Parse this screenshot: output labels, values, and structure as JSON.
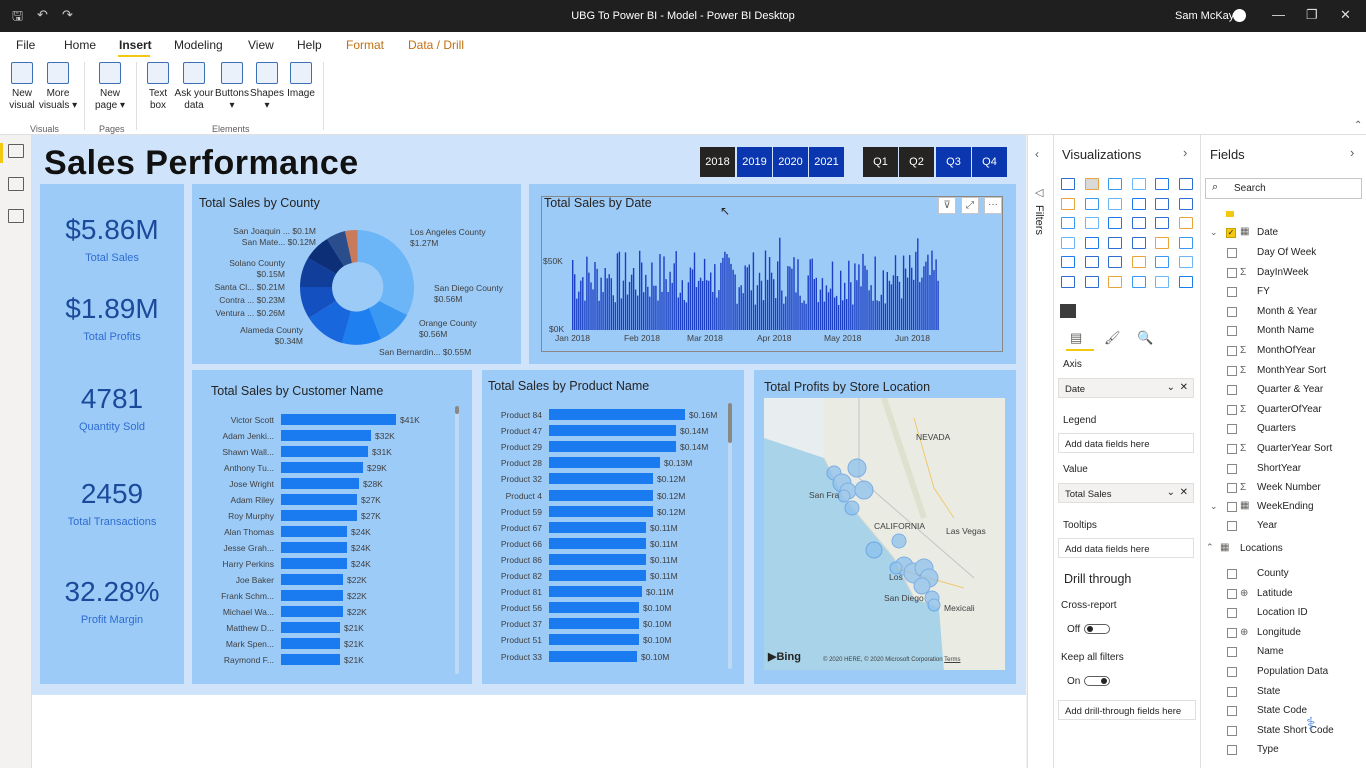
{
  "titlebar": {
    "title": "UBG To Power BI - Model - Power BI Desktop",
    "user": "Sam McKay"
  },
  "menu": [
    "File",
    "Home",
    "Insert",
    "Modeling",
    "View",
    "Help",
    "Format",
    "Data / Drill"
  ],
  "ribbon": {
    "buttons": [
      {
        "label": "New\nvisual"
      },
      {
        "label": "More\nvisuals ▾"
      },
      {
        "label": "New\npage ▾"
      },
      {
        "label": "Text\nbox"
      },
      {
        "label": "Ask your\ndata"
      },
      {
        "label": "Buttons\n▾"
      },
      {
        "label": "Shapes\n▾"
      },
      {
        "label": "Image"
      }
    ],
    "groups": [
      "Visuals",
      "Pages",
      "Elements"
    ]
  },
  "report": {
    "title": "Sales Performance",
    "years": [
      "2018",
      "2019",
      "2020",
      "2021"
    ],
    "quarters": [
      "Q1",
      "Q2",
      "Q3",
      "Q4"
    ],
    "kpis": [
      {
        "value": "$5.86M",
        "label": "Total Sales"
      },
      {
        "value": "$1.89M",
        "label": "Total Profits"
      },
      {
        "value": "4781",
        "label": "Quantity Sold"
      },
      {
        "value": "2459",
        "label": "Total Transactions"
      },
      {
        "value": "32.28%",
        "label": "Profit Margin"
      }
    ],
    "county_chart": {
      "title": "Total Sales by County",
      "labels": [
        {
          "name": "San Joaquin ...",
          "value": "$0.1M"
        },
        {
          "name": "San Mate...",
          "value": "$0.12M"
        },
        {
          "name": "Solano County",
          "value": "$0.15M"
        },
        {
          "name": "Santa Cl...",
          "value": "$0.21M"
        },
        {
          "name": "Contra ...",
          "value": "$0.23M"
        },
        {
          "name": "Ventura ...",
          "value": "$0.26M"
        },
        {
          "name": "Alameda County",
          "value": "$0.34M"
        },
        {
          "name": "Los Angeles County",
          "value": "$1.27M"
        },
        {
          "name": "San Diego County",
          "value": "$0.56M"
        },
        {
          "name": "Orange County",
          "value": "$0.56M"
        },
        {
          "name": "San Bernardin...",
          "value": "$0.55M"
        }
      ]
    },
    "date_chart": {
      "title": "Total Sales by Date",
      "yticks": [
        "$50K",
        "$0K"
      ],
      "xticks": [
        "Jan 2018",
        "Feb 2018",
        "Mar 2018",
        "Apr 2018",
        "May 2018",
        "Jun 2018"
      ]
    },
    "customer_chart": {
      "title": "Total Sales by Customer Name",
      "rows": [
        {
          "name": "Victor Scott",
          "value": "$41K"
        },
        {
          "name": "Adam Jenki...",
          "value": "$32K"
        },
        {
          "name": "Shawn Wall...",
          "value": "$31K"
        },
        {
          "name": "Anthony Tu...",
          "value": "$29K"
        },
        {
          "name": "Jose Wright",
          "value": "$28K"
        },
        {
          "name": "Adam Riley",
          "value": "$27K"
        },
        {
          "name": "Roy Murphy",
          "value": "$27K"
        },
        {
          "name": "Alan Thomas",
          "value": "$24K"
        },
        {
          "name": "Jesse Grah...",
          "value": "$24K"
        },
        {
          "name": "Harry Perkins",
          "value": "$24K"
        },
        {
          "name": "Joe Baker",
          "value": "$22K"
        },
        {
          "name": "Frank Schm...",
          "value": "$22K"
        },
        {
          "name": "Michael Wa...",
          "value": "$22K"
        },
        {
          "name": "Matthew D...",
          "value": "$21K"
        },
        {
          "name": "Mark Spen...",
          "value": "$21K"
        },
        {
          "name": "Raymond F...",
          "value": "$21K"
        }
      ]
    },
    "product_chart": {
      "title": "Total Sales by Product Name",
      "rows": [
        {
          "name": "Product 84",
          "value": "$0.16M"
        },
        {
          "name": "Product 47",
          "value": "$0.14M"
        },
        {
          "name": "Product 29",
          "value": "$0.14M"
        },
        {
          "name": "Product 28",
          "value": "$0.13M"
        },
        {
          "name": "Product 32",
          "value": "$0.12M"
        },
        {
          "name": "Product 4",
          "value": "$0.12M"
        },
        {
          "name": "Product 59",
          "value": "$0.12M"
        },
        {
          "name": "Product 67",
          "value": "$0.11M"
        },
        {
          "name": "Product 66",
          "value": "$0.11M"
        },
        {
          "name": "Product 86",
          "value": "$0.11M"
        },
        {
          "name": "Product 82",
          "value": "$0.11M"
        },
        {
          "name": "Product 81",
          "value": "$0.11M"
        },
        {
          "name": "Product 56",
          "value": "$0.10M"
        },
        {
          "name": "Product 37",
          "value": "$0.10M"
        },
        {
          "name": "Product 51",
          "value": "$0.10M"
        },
        {
          "name": "Product 33",
          "value": "$0.10M"
        }
      ]
    },
    "map": {
      "title": "Total Profits by Store Location",
      "labels": [
        "NEVADA",
        "CALIFORNIA",
        "Las Vegas",
        "San Fra",
        "Los",
        "San Diego",
        "Mexicali"
      ],
      "logo": "Bing",
      "copyright": "© 2020 HERE, © 2020 Microsoft Corporation",
      "terms": "Terms"
    }
  },
  "filters": {
    "label": "Filters"
  },
  "viz": {
    "title": "Visualizations",
    "axis_label": "Axis",
    "axis_value": "Date",
    "legend_label": "Legend",
    "legend_placeholder": "Add data fields here",
    "value_label": "Value",
    "value_value": "Total Sales",
    "tooltips_label": "Tooltips",
    "tooltips_placeholder": "Add data fields here",
    "drill_title": "Drill through",
    "cross_report": "Cross-report",
    "cross_state": "Off",
    "keep_filters": "Keep all filters",
    "keep_state": "On",
    "drill_placeholder": "Add drill-through fields here"
  },
  "fields": {
    "title": "Fields",
    "search_placeholder": "Search",
    "date_table": "Date",
    "date_fields": [
      {
        "name": "Day Of Week",
        "sigma": ""
      },
      {
        "name": "DayInWeek",
        "sigma": "Σ"
      },
      {
        "name": "FY",
        "sigma": ""
      },
      {
        "name": "Month & Year",
        "sigma": ""
      },
      {
        "name": "Month Name",
        "sigma": ""
      },
      {
        "name": "MonthOfYear",
        "sigma": "Σ"
      },
      {
        "name": "MonthYear Sort",
        "sigma": "Σ"
      },
      {
        "name": "Quarter & Year",
        "sigma": ""
      },
      {
        "name": "QuarterOfYear",
        "sigma": "Σ"
      },
      {
        "name": "Quarters",
        "sigma": ""
      },
      {
        "name": "QuarterYear Sort",
        "sigma": "Σ"
      },
      {
        "name": "ShortYear",
        "sigma": ""
      },
      {
        "name": "Week Number",
        "sigma": "Σ"
      }
    ],
    "weekending": "WeekEnding",
    "year": "Year",
    "locations_table": "Locations",
    "location_fields": [
      {
        "name": "County",
        "sigma": ""
      },
      {
        "name": "Latitude",
        "sigma": "⊕"
      },
      {
        "name": "Location ID",
        "sigma": ""
      },
      {
        "name": "Longitude",
        "sigma": "⊕"
      },
      {
        "name": "Name",
        "sigma": ""
      },
      {
        "name": "Population Data",
        "sigma": ""
      },
      {
        "name": "State",
        "sigma": ""
      },
      {
        "name": "State Code",
        "sigma": ""
      },
      {
        "name": "State Short Code",
        "sigma": ""
      },
      {
        "name": "Type",
        "sigma": ""
      }
    ]
  },
  "colors": {
    "accent": "#f2c811",
    "slicer_dark": "#252423",
    "slicer_blue": "#0a36b0",
    "bar": "#1a7bf0",
    "kpi": "#1b4a9a"
  }
}
